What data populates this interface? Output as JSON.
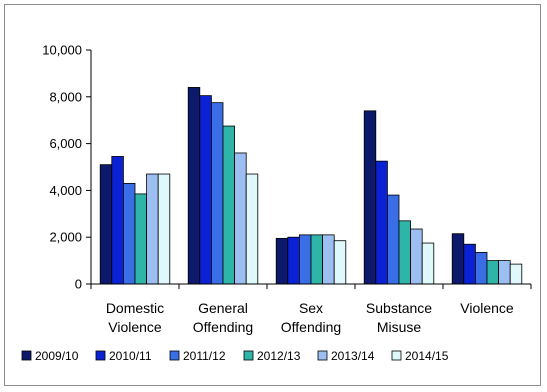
{
  "chart_data": {
    "type": "bar",
    "title": "",
    "xlabel": "",
    "ylabel": "",
    "ylim": [
      0,
      10000
    ],
    "yticks": [
      0,
      2000,
      4000,
      6000,
      8000,
      10000
    ],
    "ytick_labels": [
      "0",
      "2,000",
      "4,000",
      "6,000",
      "8,000",
      "10,000"
    ],
    "grid": false,
    "legend_position": "bottom",
    "categories": [
      [
        "Domestic",
        "Violence"
      ],
      [
        "General",
        "Offending"
      ],
      [
        "Sex",
        "Offending"
      ],
      [
        "Substance",
        "Misuse"
      ],
      [
        "Violence"
      ]
    ],
    "series": [
      {
        "name": "2009/10",
        "color": "#0d1a6b",
        "values": [
          5100,
          8400,
          1950,
          7400,
          2150
        ]
      },
      {
        "name": "2010/11",
        "color": "#0a22d4",
        "values": [
          5450,
          8050,
          2000,
          5250,
          1700
        ]
      },
      {
        "name": "2011/12",
        "color": "#3a6ee6",
        "values": [
          4300,
          7750,
          2100,
          3800,
          1350
        ]
      },
      {
        "name": "2012/13",
        "color": "#2eb5a8",
        "values": [
          3850,
          6750,
          2100,
          2700,
          1000
        ]
      },
      {
        "name": "2013/14",
        "color": "#9cbef0",
        "values": [
          4700,
          5600,
          2100,
          2350,
          1000
        ]
      },
      {
        "name": "2014/15",
        "color": "#dff8fb",
        "values": [
          4700,
          4700,
          1850,
          1750,
          850
        ]
      }
    ]
  }
}
